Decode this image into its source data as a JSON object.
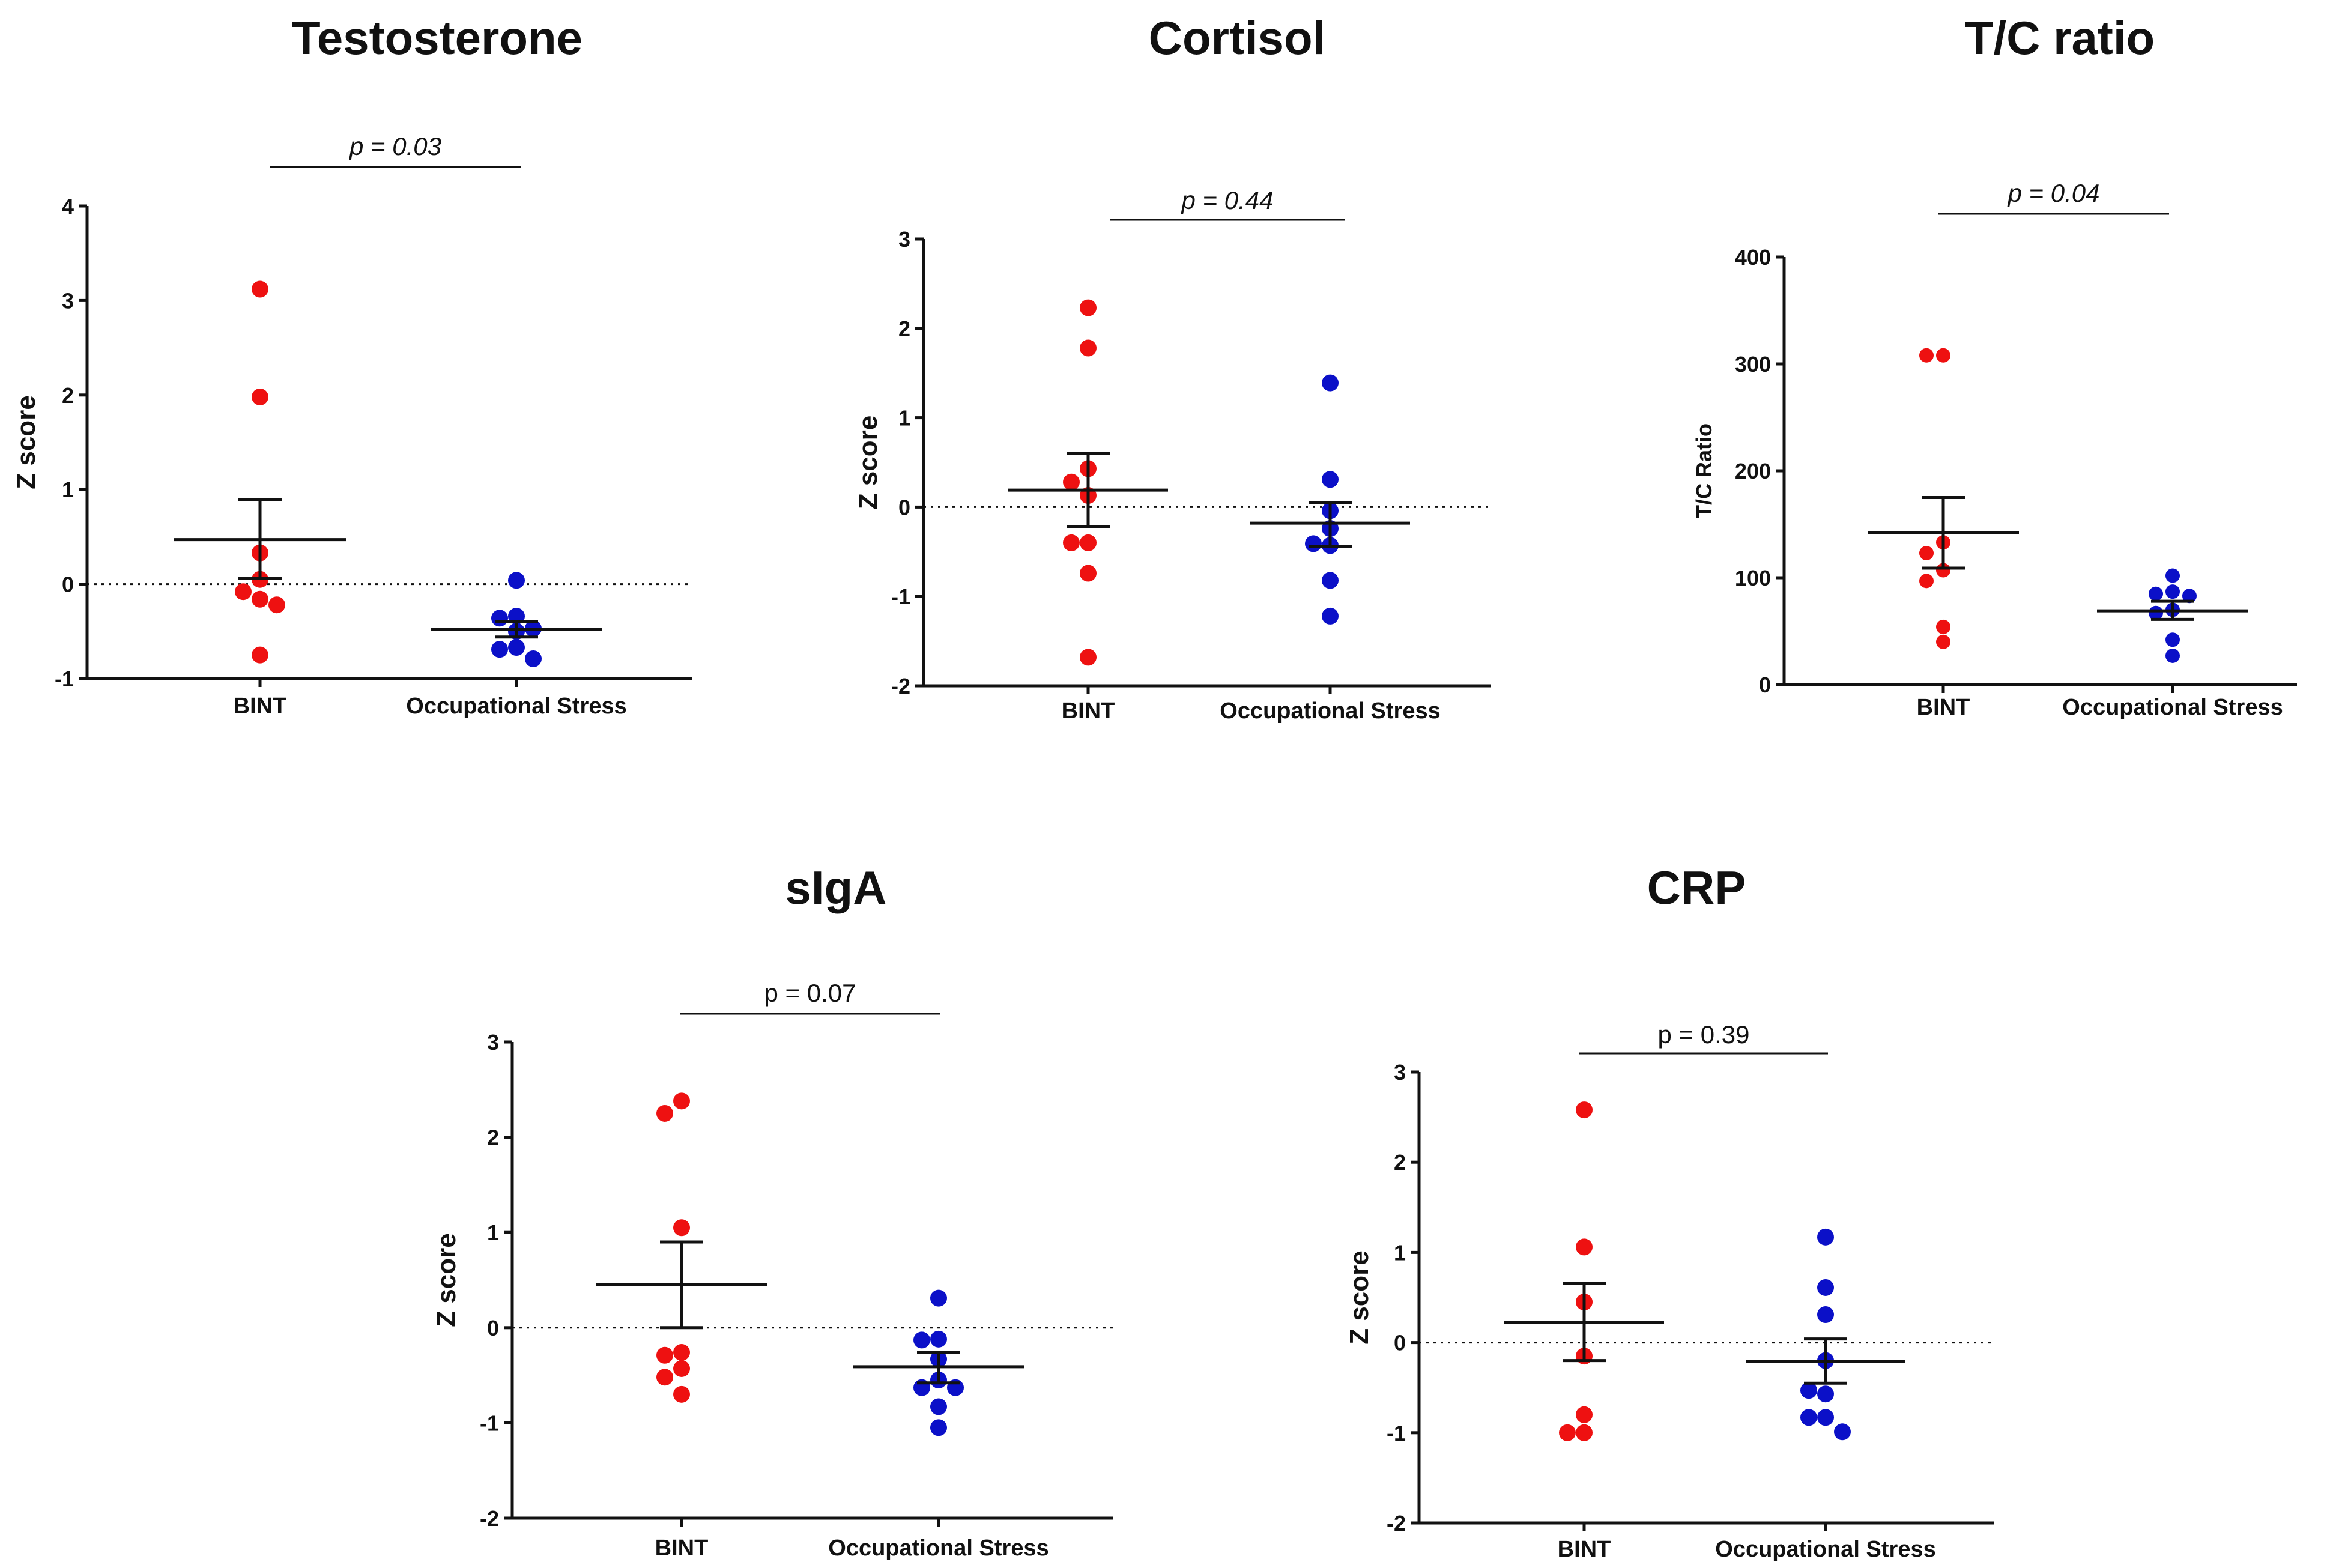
{
  "colors": {
    "bint": "#ee1111",
    "occupational": "#0b10c8",
    "axis": "#111111"
  },
  "chart_data": [
    {
      "type": "scatter",
      "title": "Testosterone",
      "ylabel": "Z score",
      "ylim": [
        -1,
        4
      ],
      "yticks": [
        "4",
        "3",
        "2",
        "1",
        "0",
        "-1"
      ],
      "categories": [
        "BINT",
        "Occupational Stress"
      ],
      "p_label": "p = 0.03",
      "p_italic": true,
      "zero_line": true,
      "series": [
        {
          "name": "BINT",
          "values": [
            3.12,
            1.98,
            0.33,
            0.05,
            -0.08,
            -0.16,
            -0.22,
            -0.75
          ],
          "mean": 0.47,
          "sem_low": 0.06,
          "sem_high": 0.89
        },
        {
          "name": "Occupational Stress",
          "values": [
            0.04,
            -0.34,
            -0.36,
            -0.47,
            -0.5,
            -0.67,
            -0.69,
            -0.79
          ],
          "mean": -0.48,
          "sem_low": -0.56,
          "sem_high": -0.4
        }
      ]
    },
    {
      "type": "scatter",
      "title": "Cortisol",
      "ylabel": "Z score",
      "ylim": [
        -2,
        3
      ],
      "yticks": [
        "3",
        "2",
        "1",
        "0",
        "-1",
        "-2"
      ],
      "categories": [
        "BINT",
        "Occupational Stress"
      ],
      "p_label": "p = 0.44",
      "p_italic": true,
      "zero_line": true,
      "series": [
        {
          "name": "BINT",
          "values": [
            2.23,
            1.78,
            0.43,
            0.28,
            0.13,
            -0.4,
            -0.4,
            -0.74,
            -1.68
          ],
          "mean": 0.19,
          "sem_low": -0.22,
          "sem_high": 0.6
        },
        {
          "name": "Occupational Stress",
          "values": [
            1.39,
            0.31,
            -0.04,
            -0.24,
            -0.41,
            -0.43,
            -0.82,
            -1.22
          ],
          "mean": -0.18,
          "sem_low": -0.44,
          "sem_high": 0.05
        }
      ]
    },
    {
      "type": "scatter",
      "title": "T/C ratio",
      "ylabel": "T/C Ratio",
      "ylim": [
        0,
        400
      ],
      "yticks": [
        "400",
        "300",
        "200",
        "100",
        "0"
      ],
      "categories": [
        "BINT",
        "Occupational Stress"
      ],
      "p_label": "p = 0.04",
      "p_italic": true,
      "zero_line": false,
      "series": [
        {
          "name": "BINT",
          "values": [
            308,
            308,
            133,
            123,
            107,
            97,
            54,
            40
          ],
          "mean": 142,
          "sem_low": 109,
          "sem_high": 175
        },
        {
          "name": "Occupational Stress",
          "values": [
            102,
            87,
            85,
            83,
            70,
            67,
            42,
            27
          ],
          "mean": 69,
          "sem_low": 61,
          "sem_high": 78
        }
      ]
    },
    {
      "type": "scatter",
      "title": "sIgA",
      "ylabel": "Z score",
      "ylim": [
        -2,
        3
      ],
      "yticks": [
        "3",
        "2",
        "1",
        "0",
        "-1",
        "-2"
      ],
      "categories": [
        "BINT",
        "Occupational Stress"
      ],
      "p_label": "p = 0.07",
      "p_italic": false,
      "zero_line": true,
      "series": [
        {
          "name": "BINT",
          "values": [
            2.38,
            2.25,
            1.05,
            -0.26,
            -0.29,
            -0.43,
            -0.52,
            -0.7
          ],
          "mean": 0.45,
          "sem_low": 0.0,
          "sem_high": 0.9
        },
        {
          "name": "Occupational Stress",
          "values": [
            0.31,
            -0.12,
            -0.13,
            -0.33,
            -0.55,
            -0.63,
            -0.63,
            -0.83,
            -1.05
          ],
          "mean": -0.41,
          "sem_low": -0.58,
          "sem_high": -0.26
        }
      ]
    },
    {
      "type": "scatter",
      "title": "CRP",
      "ylabel": "Z score",
      "ylim": [
        -2,
        3
      ],
      "yticks": [
        "3",
        "2",
        "1",
        "0",
        "-1",
        "-2"
      ],
      "categories": [
        "BINT",
        "Occupational Stress"
      ],
      "p_label": "p = 0.39",
      "p_italic": false,
      "zero_line": true,
      "series": [
        {
          "name": "BINT",
          "values": [
            2.58,
            1.06,
            0.45,
            -0.15,
            -0.8,
            -1.0,
            -1.0
          ],
          "mean": 0.22,
          "sem_low": -0.2,
          "sem_high": 0.66
        },
        {
          "name": "Occupational Stress",
          "values": [
            1.17,
            0.61,
            0.31,
            -0.2,
            -0.57,
            -0.53,
            -0.83,
            -0.83,
            -0.99
          ],
          "mean": -0.21,
          "sem_low": -0.45,
          "sem_high": 0.04
        }
      ]
    }
  ]
}
